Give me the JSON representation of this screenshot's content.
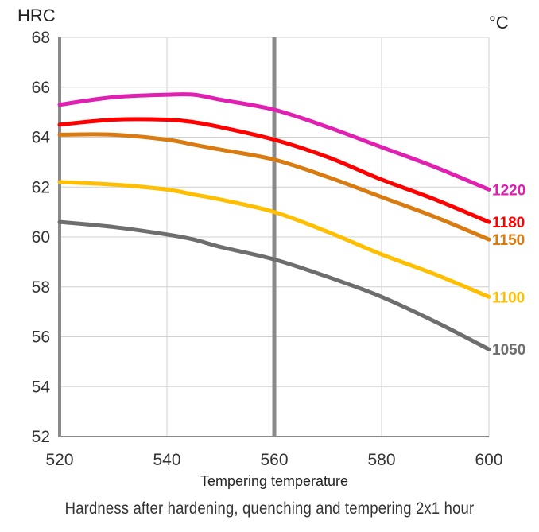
{
  "chart_data": {
    "type": "line",
    "ylabel": "HRC",
    "y2label": "°C",
    "xlabel": "Tempering temperature",
    "caption": "Hardness after hardening, quenching and tempering  2x1 hour",
    "xlim": [
      520,
      600
    ],
    "ylim": [
      52,
      68
    ],
    "x_ticks": [
      520,
      540,
      560,
      580,
      600
    ],
    "y_ticks": [
      52,
      54,
      56,
      58,
      60,
      62,
      64,
      66,
      68
    ],
    "grid": true,
    "x": [
      520,
      530,
      540,
      545,
      550,
      560,
      570,
      580,
      590,
      600
    ],
    "series": [
      {
        "name": "1220",
        "color": "#e020b0",
        "values": [
          65.3,
          65.6,
          65.7,
          65.7,
          65.5,
          65.1,
          64.4,
          63.6,
          62.8,
          61.9
        ]
      },
      {
        "name": "1180",
        "color": "#ff0000",
        "values": [
          64.5,
          64.7,
          64.7,
          64.6,
          64.4,
          63.9,
          63.2,
          62.3,
          61.5,
          60.6
        ]
      },
      {
        "name": "1150",
        "color": "#d97b10",
        "values": [
          64.1,
          64.1,
          63.9,
          63.7,
          63.5,
          63.1,
          62.4,
          61.6,
          60.8,
          59.9
        ]
      },
      {
        "name": "1100",
        "color": "#ffbf00",
        "values": [
          62.2,
          62.1,
          61.9,
          61.7,
          61.5,
          61.0,
          60.2,
          59.3,
          58.5,
          57.6
        ]
      },
      {
        "name": "1050",
        "color": "#6e6e6e",
        "values": [
          60.6,
          60.4,
          60.1,
          59.9,
          59.6,
          59.1,
          58.4,
          57.6,
          56.6,
          55.5
        ]
      }
    ]
  }
}
